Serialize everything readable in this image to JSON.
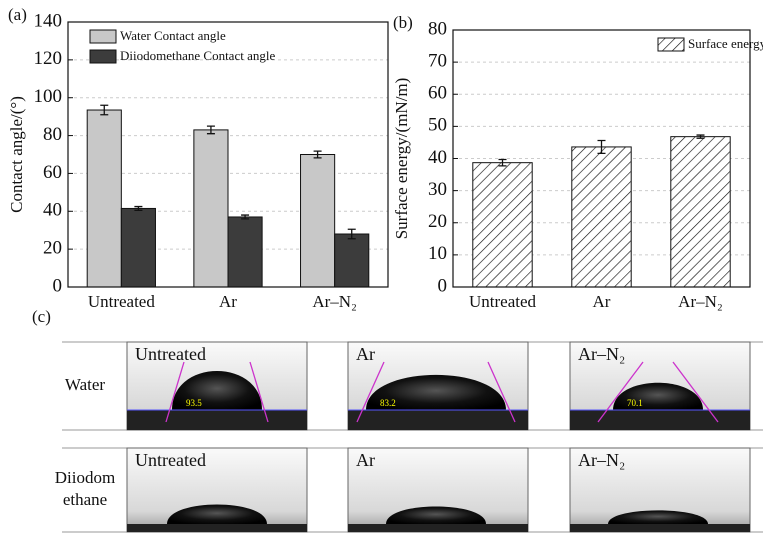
{
  "chart_data": [
    {
      "type": "bar",
      "panel_label": "(a)",
      "y_label": "Contact angle/(°)",
      "categories": [
        "Untreated",
        "Ar",
        "Ar–N₂"
      ],
      "series": [
        {
          "name": "Water Contact angle",
          "color": "#c8c8c8",
          "values": [
            93.5,
            83,
            70
          ],
          "errors": [
            2.5,
            2,
            1.8
          ]
        },
        {
          "name": "Diiodomethane Contact angle",
          "color": "#3c3c3c",
          "values": [
            41.5,
            37,
            28
          ],
          "errors": [
            1,
            1,
            2.5
          ]
        }
      ],
      "ylim": [
        0,
        140
      ],
      "yticks": [
        0,
        20,
        40,
        60,
        80,
        100,
        120,
        140
      ],
      "grid": true,
      "legend": "top-left"
    },
    {
      "type": "bar",
      "panel_label": "(b)",
      "y_label": "Surface energy/(mN/m)",
      "categories": [
        "Untreated",
        "Ar",
        "Ar–N₂"
      ],
      "series": [
        {
          "name": "Surface energy",
          "color": "#ffffff",
          "hatch": true,
          "values": [
            38.7,
            43.6,
            46.8
          ],
          "errors": [
            1,
            2,
            0.5
          ]
        }
      ],
      "ylim": [
        0,
        80
      ],
      "yticks": [
        0,
        10,
        20,
        30,
        40,
        50,
        60,
        70,
        80
      ],
      "grid": true,
      "legend": "top-right"
    }
  ],
  "panel_c": {
    "label": "(c)",
    "rows": [
      {
        "label_lines": [
          "Water"
        ],
        "images": [
          {
            "label": "Untreated",
            "angle": "93.5"
          },
          {
            "label": "Ar",
            "angle": "83.2"
          },
          {
            "label": "Ar–N₂",
            "angle": "70.1"
          }
        ]
      },
      {
        "label_lines": [
          "Diiodom",
          "ethane"
        ],
        "images": [
          {
            "label": "Untreated"
          },
          {
            "label": "Ar"
          },
          {
            "label": "Ar–N₂"
          }
        ]
      }
    ]
  }
}
